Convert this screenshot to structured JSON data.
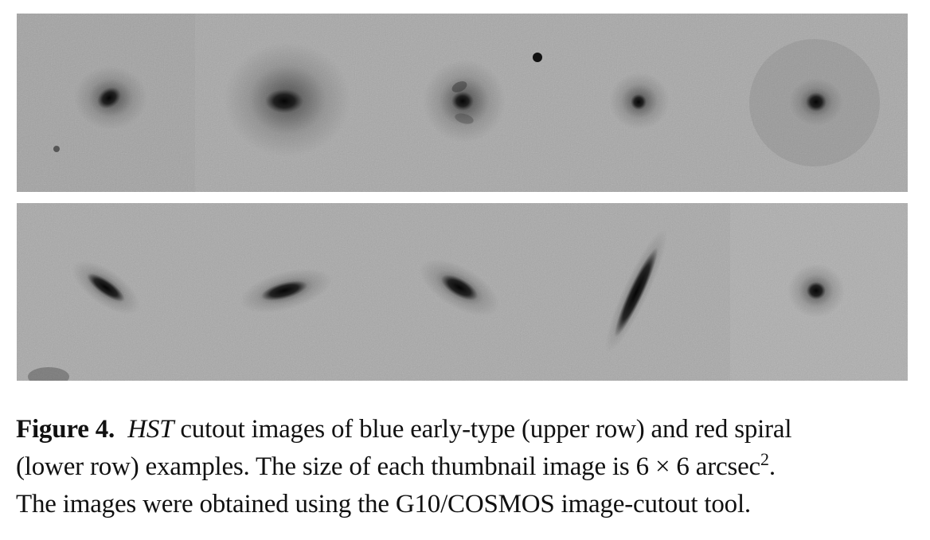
{
  "figure": {
    "colors": {
      "background": "#a6a6a6",
      "galaxy": "#111111"
    },
    "upper_row": {
      "thumbnails": [
        {
          "icon": "compact-galaxy"
        },
        {
          "icon": "bright-bulge-galaxy"
        },
        {
          "icon": "disturbed-galaxy"
        },
        {
          "icon": "small-compact-galaxy"
        },
        {
          "icon": "ringed-galaxy"
        }
      ]
    },
    "lower_row": {
      "thumbnails": [
        {
          "icon": "inclined-disk-galaxy"
        },
        {
          "icon": "elongated-galaxy"
        },
        {
          "icon": "inclined-disk-galaxy"
        },
        {
          "icon": "edge-on-spiral-galaxy"
        },
        {
          "icon": "compact-galaxy"
        }
      ]
    }
  },
  "caption": {
    "label": "Figure 4.",
    "hst": "HST",
    "line1_rest": " cutout images of blue early-type (upper row) and red spiral",
    "line2_a": "(lower row) examples. The size of each thumbnail image is 6 × 6 arcsec",
    "line2_sup": "2",
    "line2_end": ".",
    "line3": "The images were obtained using the G10/COSMOS image-cutout tool."
  }
}
